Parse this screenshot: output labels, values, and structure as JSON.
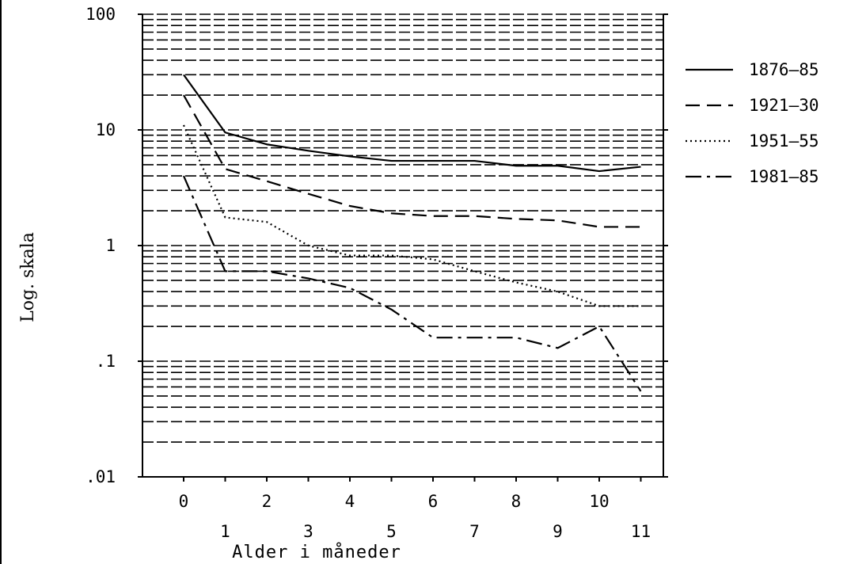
{
  "chart_data": {
    "type": "line",
    "title": "",
    "xlabel": "Alder i måneder",
    "ylabel": "Log. skala",
    "yscale": "log",
    "ylim": [
      0.01,
      100
    ],
    "xlim": [
      0,
      11
    ],
    "y_ticks": [
      {
        "value": 100,
        "label": "100"
      },
      {
        "value": 10,
        "label": "10"
      },
      {
        "value": 1,
        "label": "1"
      },
      {
        "value": 0.1,
        "label": ".1"
      },
      {
        "value": 0.01,
        "label": ".01"
      }
    ],
    "x_ticks_upper": [
      {
        "value": 0,
        "label": "0"
      },
      {
        "value": 2,
        "label": "2"
      },
      {
        "value": 4,
        "label": "4"
      },
      {
        "value": 6,
        "label": "6"
      },
      {
        "value": 8,
        "label": "8"
      },
      {
        "value": 10,
        "label": "10"
      }
    ],
    "x_ticks_lower": [
      {
        "value": 1,
        "label": "1"
      },
      {
        "value": 3,
        "label": "3"
      },
      {
        "value": 5,
        "label": "5"
      },
      {
        "value": 7,
        "label": "7"
      },
      {
        "value": 9,
        "label": "9"
      },
      {
        "value": 11,
        "label": "11"
      }
    ],
    "grid": true,
    "grid_style": "dashed horizontal",
    "legend_position": "right",
    "x": [
      0,
      1,
      2,
      3,
      4,
      5,
      6,
      7,
      8,
      9,
      10,
      11
    ],
    "series": [
      {
        "name": "1876–85",
        "style": "solid",
        "values": [
          30,
          9.5,
          7.5,
          6.6,
          5.9,
          5.4,
          5.4,
          5.4,
          4.9,
          4.9,
          4.4,
          4.8
        ]
      },
      {
        "name": "1921–30",
        "style": "dashed",
        "values": [
          20,
          4.6,
          3.6,
          2.8,
          2.2,
          1.9,
          1.8,
          1.8,
          1.7,
          1.65,
          1.45,
          1.45
        ]
      },
      {
        "name": "1951–55",
        "style": "dotted",
        "values": [
          11,
          1.75,
          1.6,
          1.0,
          0.82,
          0.82,
          0.76,
          0.6,
          0.48,
          0.4,
          0.3,
          0.3
        ]
      },
      {
        "name": "1981–85",
        "style": "dashdot",
        "values": [
          4,
          0.6,
          0.6,
          0.52,
          0.43,
          0.28,
          0.16,
          0.16,
          0.16,
          0.13,
          0.2,
          0.055
        ]
      }
    ]
  }
}
